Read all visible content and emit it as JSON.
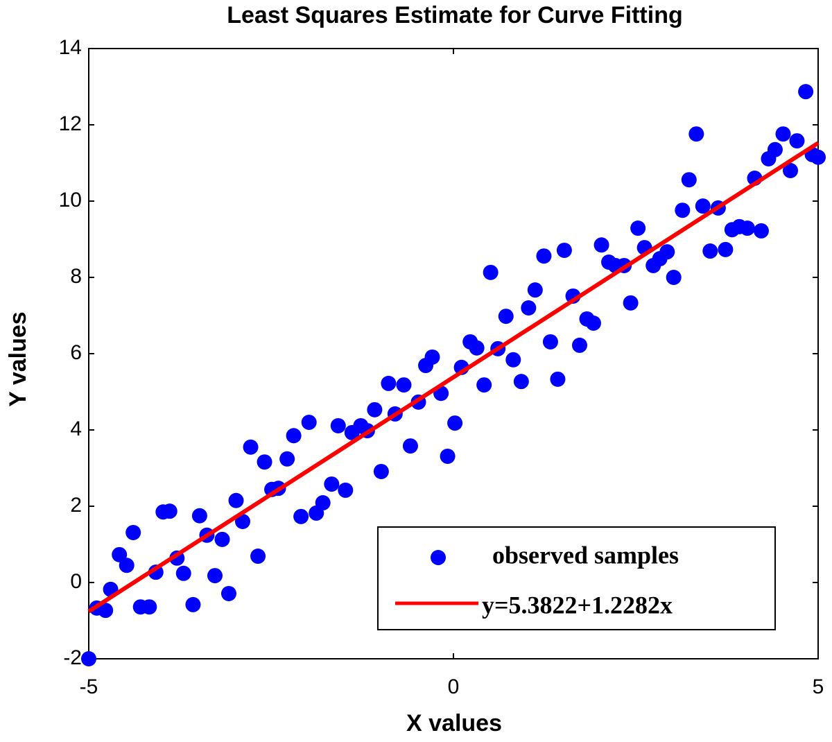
{
  "chart_data": {
    "type": "scatter",
    "title": "Least Squares Estimate for Curve Fitting",
    "x_label": "X values",
    "y_label": "Y values",
    "xlim": [
      -5,
      5
    ],
    "ylim": [
      -2,
      14
    ],
    "xticks": [
      -5,
      0,
      5
    ],
    "yticks": [
      -2,
      0,
      2,
      4,
      6,
      8,
      10,
      12,
      14
    ],
    "legend": "lower right",
    "series": [
      {
        "name": "observed samples",
        "kind": "scatter",
        "color": "#0000ff",
        "x": [
          -5.0,
          -4.89,
          -4.77,
          -4.7,
          -4.58,
          -4.48,
          -4.39,
          -4.29,
          -4.17,
          -4.08,
          -3.98,
          -3.89,
          -3.79,
          -3.7,
          -3.57,
          -3.48,
          -3.38,
          -3.27,
          -3.17,
          -3.08,
          -2.98,
          -2.89,
          -2.78,
          -2.68,
          -2.59,
          -2.49,
          -2.4,
          -2.28,
          -2.19,
          -2.09,
          -1.98,
          -1.88,
          -1.79,
          -1.67,
          -1.58,
          -1.48,
          -1.39,
          -1.27,
          -1.18,
          -1.08,
          -0.99,
          -0.89,
          -0.8,
          -0.68,
          -0.59,
          -0.48,
          -0.38,
          -0.29,
          -0.17,
          -0.08,
          0.02,
          0.11,
          0.23,
          0.32,
          0.42,
          0.51,
          0.61,
          0.72,
          0.82,
          0.93,
          1.03,
          1.12,
          1.24,
          1.33,
          1.43,
          1.52,
          1.64,
          1.73,
          1.83,
          1.92,
          2.03,
          2.13,
          2.22,
          2.34,
          2.43,
          2.53,
          2.62,
          2.74,
          2.83,
          2.93,
          3.02,
          3.14,
          3.23,
          3.33,
          3.42,
          3.52,
          3.63,
          3.73,
          3.82,
          3.92,
          4.03,
          4.13,
          4.22,
          4.32,
          4.41,
          4.52,
          4.62,
          4.71,
          4.83,
          4.92,
          5.0
        ],
        "values": [
          -2.0,
          -0.67,
          -0.73,
          -0.18,
          0.73,
          0.45,
          1.31,
          -0.64,
          -0.64,
          0.27,
          1.85,
          1.87,
          0.64,
          0.24,
          -0.58,
          1.75,
          1.24,
          0.18,
          1.13,
          -0.29,
          2.15,
          1.6,
          3.55,
          0.69,
          3.16,
          2.44,
          2.47,
          3.24,
          3.85,
          1.73,
          4.2,
          1.82,
          2.09,
          2.58,
          4.11,
          2.42,
          3.93,
          4.11,
          3.98,
          4.53,
          2.91,
          5.22,
          4.42,
          5.18,
          3.58,
          4.73,
          5.69,
          5.91,
          4.96,
          3.31,
          4.18,
          5.64,
          6.31,
          6.15,
          5.18,
          8.13,
          6.13,
          6.98,
          5.84,
          5.27,
          7.2,
          7.67,
          8.56,
          6.31,
          5.33,
          8.71,
          7.51,
          6.22,
          6.91,
          6.8,
          8.85,
          8.4,
          8.31,
          8.31,
          7.33,
          9.29,
          8.78,
          8.31,
          8.49,
          8.67,
          8.0,
          9.76,
          10.56,
          11.76,
          9.87,
          8.69,
          9.82,
          8.73,
          9.25,
          9.33,
          9.29,
          10.6,
          9.22,
          11.11,
          11.35,
          11.76,
          10.8,
          11.58,
          12.87,
          11.22,
          11.15
        ]
      },
      {
        "name": "y=5.3822+1.2282x",
        "kind": "line",
        "color": "#ff0000",
        "x": [
          -5,
          5
        ],
        "values": [
          -0.7588,
          11.5232
        ]
      }
    ]
  }
}
